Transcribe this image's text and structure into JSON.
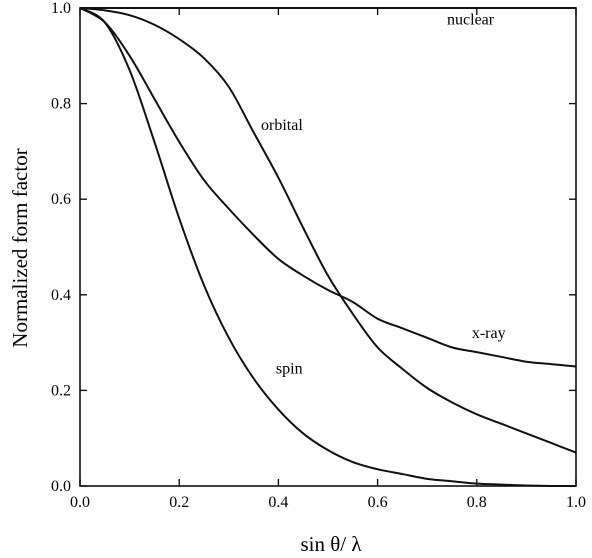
{
  "chart_data": {
    "type": "line",
    "title": "",
    "xlabel": "sin θ/ λ",
    "ylabel": "Normalized form factor",
    "xlim": [
      0.0,
      1.0
    ],
    "ylim": [
      0.0,
      1.0
    ],
    "xticks": [
      0.0,
      0.2,
      0.4,
      0.6,
      0.8,
      1.0
    ],
    "yticks": [
      0.0,
      0.2,
      0.4,
      0.6,
      0.8,
      1.0
    ],
    "xtick_labels": [
      "0.0",
      "0.2",
      "0.4",
      "0.6",
      "0.8",
      "1.0"
    ],
    "ytick_labels": [
      "0.0",
      "0.2",
      "0.4",
      "0.6",
      "0.8",
      "1.0"
    ],
    "grid": false,
    "legend": "none",
    "series": [
      {
        "name": "nuclear",
        "x": [
          0.0,
          1.0
        ],
        "y": [
          1.0,
          1.0
        ],
        "label_at": [
          0.74,
          0.965
        ]
      },
      {
        "name": "orbital",
        "x": [
          0.0,
          0.05,
          0.1,
          0.15,
          0.2,
          0.25,
          0.3,
          0.35,
          0.4,
          0.45,
          0.5,
          0.55,
          0.6,
          0.65,
          0.7,
          0.75,
          0.8,
          0.85,
          0.9,
          0.95,
          1.0
        ],
        "y": [
          1.0,
          0.995,
          0.985,
          0.965,
          0.935,
          0.895,
          0.835,
          0.74,
          0.645,
          0.54,
          0.44,
          0.36,
          0.29,
          0.245,
          0.205,
          0.175,
          0.15,
          0.13,
          0.11,
          0.09,
          0.07
        ],
        "label_at": [
          0.365,
          0.745
        ]
      },
      {
        "name": "x-ray",
        "x": [
          0.0,
          0.05,
          0.1,
          0.15,
          0.2,
          0.25,
          0.3,
          0.35,
          0.4,
          0.45,
          0.5,
          0.55,
          0.6,
          0.65,
          0.7,
          0.75,
          0.8,
          0.85,
          0.9,
          0.95,
          1.0
        ],
        "y": [
          1.0,
          0.97,
          0.9,
          0.81,
          0.72,
          0.64,
          0.58,
          0.525,
          0.475,
          0.44,
          0.41,
          0.385,
          0.35,
          0.33,
          0.31,
          0.29,
          0.28,
          0.27,
          0.26,
          0.255,
          0.25
        ],
        "label_at": [
          0.79,
          0.31
        ]
      },
      {
        "name": "spin",
        "x": [
          0.0,
          0.05,
          0.1,
          0.15,
          0.2,
          0.25,
          0.3,
          0.35,
          0.4,
          0.45,
          0.5,
          0.55,
          0.6,
          0.65,
          0.7,
          0.75,
          0.8,
          0.85,
          0.9,
          0.95,
          1.0
        ],
        "y": [
          1.0,
          0.97,
          0.87,
          0.72,
          0.56,
          0.42,
          0.31,
          0.225,
          0.16,
          0.11,
          0.075,
          0.05,
          0.035,
          0.025,
          0.015,
          0.01,
          0.005,
          0.003,
          0.001,
          0.0,
          0.0
        ],
        "label_at": [
          0.395,
          0.235
        ]
      }
    ]
  }
}
